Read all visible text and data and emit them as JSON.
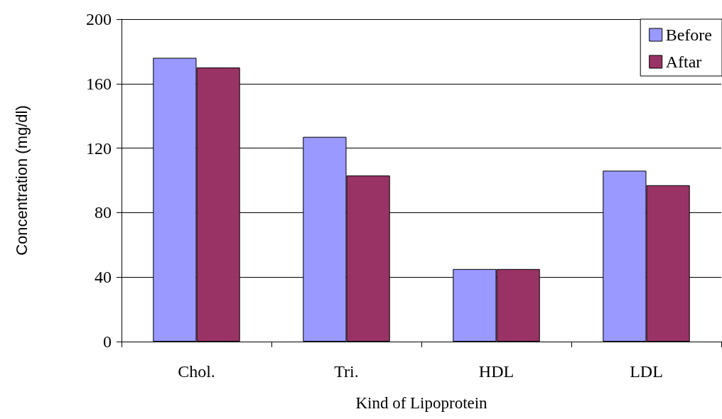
{
  "chart_data": {
    "type": "bar",
    "xlabel": "Kind of Lipoprotein",
    "ylabel": "Concentration (mg/dl)",
    "categories": [
      "Chol.",
      "Tri.",
      "HDL",
      "LDL"
    ],
    "series": [
      {
        "name": "Before",
        "color": "#9999ff",
        "values": [
          176,
          127,
          45,
          106
        ]
      },
      {
        "name": "Aftar",
        "color": "#993366",
        "values": [
          170,
          103,
          45,
          97
        ]
      }
    ],
    "ylim": [
      0,
      200
    ],
    "yticks": [
      0,
      40,
      80,
      120,
      160,
      200
    ],
    "grid": "y",
    "legend": "top right"
  }
}
